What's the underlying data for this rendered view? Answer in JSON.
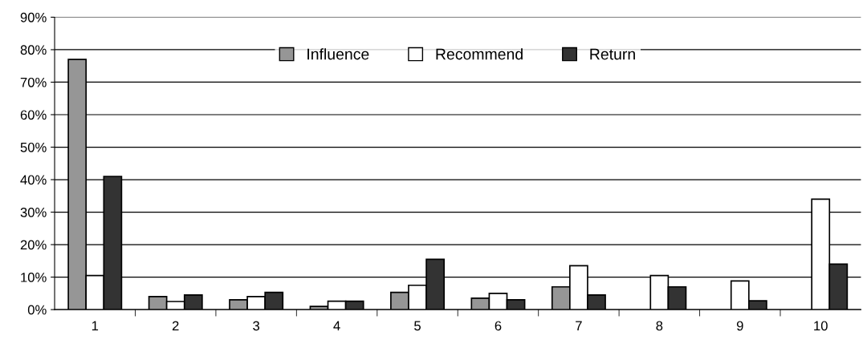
{
  "chart_data": {
    "type": "bar",
    "categories": [
      "1",
      "2",
      "3",
      "4",
      "5",
      "6",
      "7",
      "8",
      "9",
      "10"
    ],
    "series": [
      {
        "name": "Influence",
        "color": "#969696",
        "values": [
          77,
          4,
          3,
          1,
          5.3,
          3.5,
          7,
          null,
          null,
          null
        ]
      },
      {
        "name": "Recommend",
        "color": "#ffffff",
        "values": [
          10.5,
          2.5,
          4,
          2.6,
          7.5,
          5,
          13.5,
          10.5,
          8.8,
          34
        ]
      },
      {
        "name": "Return",
        "color": "#333333",
        "values": [
          41,
          4.5,
          5.3,
          2.6,
          15.5,
          3,
          4.5,
          7,
          2.7,
          14
        ]
      }
    ],
    "ylim": [
      0,
      90
    ],
    "yticks": [
      {
        "value": 0,
        "label": "0%"
      },
      {
        "value": 10,
        "label": "10%"
      },
      {
        "value": 20,
        "label": "20%"
      },
      {
        "value": 30,
        "label": "30%"
      },
      {
        "value": 40,
        "label": "40%"
      },
      {
        "value": 50,
        "label": "50%"
      },
      {
        "value": 60,
        "label": "60%"
      },
      {
        "value": 70,
        "label": "70%"
      },
      {
        "value": 80,
        "label": "80%"
      },
      {
        "value": 90,
        "label": "90%"
      }
    ],
    "grid": "y",
    "legend": "top"
  }
}
